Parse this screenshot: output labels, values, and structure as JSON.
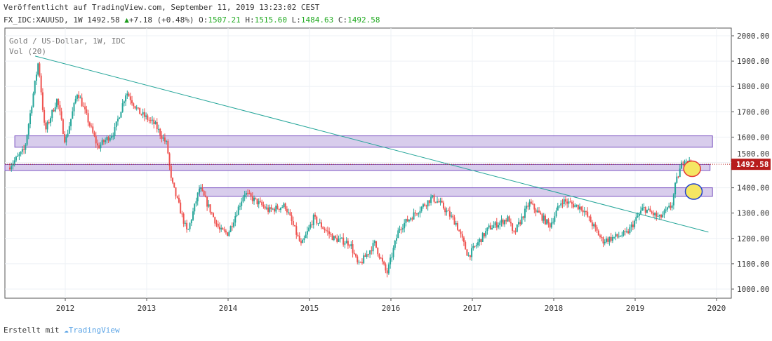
{
  "header": {
    "published": "Veröffentlicht auf TradingView.com, September 11, 2019 13:23:02 CEST",
    "symbol": "FX_IDC:XAUUSD, 1W 1492.58",
    "change": "+7.18 (+0.48%)",
    "o_label": "O:",
    "o": "1507.21",
    "h_label": "H:",
    "h": "1515.60",
    "l_label": "L:",
    "l": "1484.63",
    "c_label": "C:",
    "c": "1492.58"
  },
  "legend": {
    "title": "Gold  / US-Dollar, 1W, IDC",
    "vol": "Vol (20)"
  },
  "footer": {
    "created": "Erstellt mit",
    "brand": "TradingView"
  },
  "colors": {
    "up": "#26a69a",
    "down": "#ef5350",
    "zone": "#d1c4e9",
    "zone_border": "#7e57c2",
    "trend": "#26a69a",
    "last": "#b71c1c"
  },
  "chart_data": {
    "type": "candlestick",
    "title": "Gold / US-Dollar, 1W, IDC",
    "ylim": [
      950,
      2040
    ],
    "xlim": [
      2011.25,
      2020.2
    ],
    "yticks": [
      "1000.00",
      "1100.00",
      "1200.00",
      "1300.00",
      "1400.00",
      "1500.00",
      "1600.00",
      "1700.00",
      "1800.00",
      "1900.00",
      "2000.00"
    ],
    "xticks": [
      "2012",
      "2013",
      "2014",
      "2015",
      "2016",
      "2017",
      "2018",
      "2019",
      "2020"
    ],
    "last_price": "1492.58",
    "path": [
      [
        2011.3,
        1480
      ],
      [
        2011.5,
        1550
      ],
      [
        2011.67,
        1900
      ],
      [
        2011.75,
        1620
      ],
      [
        2011.9,
        1750
      ],
      [
        2012.0,
        1580
      ],
      [
        2012.15,
        1780
      ],
      [
        2012.4,
        1560
      ],
      [
        2012.6,
        1620
      ],
      [
        2012.75,
        1780
      ],
      [
        2012.9,
        1700
      ],
      [
        2013.1,
        1650
      ],
      [
        2013.25,
        1570
      ],
      [
        2013.3,
        1430
      ],
      [
        2013.5,
        1220
      ],
      [
        2013.65,
        1400
      ],
      [
        2013.9,
        1230
      ],
      [
        2014.0,
        1220
      ],
      [
        2014.2,
        1380
      ],
      [
        2014.5,
        1310
      ],
      [
        2014.7,
        1330
      ],
      [
        2014.9,
        1170
      ],
      [
        2015.05,
        1280
      ],
      [
        2015.3,
        1200
      ],
      [
        2015.5,
        1180
      ],
      [
        2015.6,
        1090
      ],
      [
        2015.8,
        1180
      ],
      [
        2015.95,
        1060
      ],
      [
        2016.1,
        1240
      ],
      [
        2016.5,
        1360
      ],
      [
        2016.6,
        1340
      ],
      [
        2016.8,
        1260
      ],
      [
        2016.95,
        1130
      ],
      [
        2017.2,
        1240
      ],
      [
        2017.45,
        1280
      ],
      [
        2017.5,
        1210
      ],
      [
        2017.7,
        1340
      ],
      [
        2017.95,
        1250
      ],
      [
        2018.1,
        1350
      ],
      [
        2018.35,
        1320
      ],
      [
        2018.6,
        1190
      ],
      [
        2018.7,
        1200
      ],
      [
        2018.9,
        1220
      ],
      [
        2019.1,
        1320
      ],
      [
        2019.3,
        1280
      ],
      [
        2019.45,
        1330
      ],
      [
        2019.5,
        1420
      ],
      [
        2019.6,
        1520
      ],
      [
        2019.69,
        1492.58
      ]
    ],
    "zones": [
      {
        "from": 2011.38,
        "to": 2019.95,
        "low": 1560,
        "high": 1605
      },
      {
        "from": 2011.25,
        "to": 2019.92,
        "low": 1468,
        "high": 1492
      },
      {
        "from": 2013.65,
        "to": 2019.95,
        "low": 1366,
        "high": 1400
      }
    ],
    "trendline": [
      [
        2011.63,
        1920
      ],
      [
        2019.9,
        1225
      ]
    ],
    "markers": [
      {
        "x": 2019.7,
        "y": 1475,
        "fill": "#f5e663",
        "stroke": "#e53935"
      },
      {
        "x": 2019.72,
        "y": 1385,
        "fill": "#f5e663",
        "stroke": "#1e3fd0"
      }
    ]
  }
}
